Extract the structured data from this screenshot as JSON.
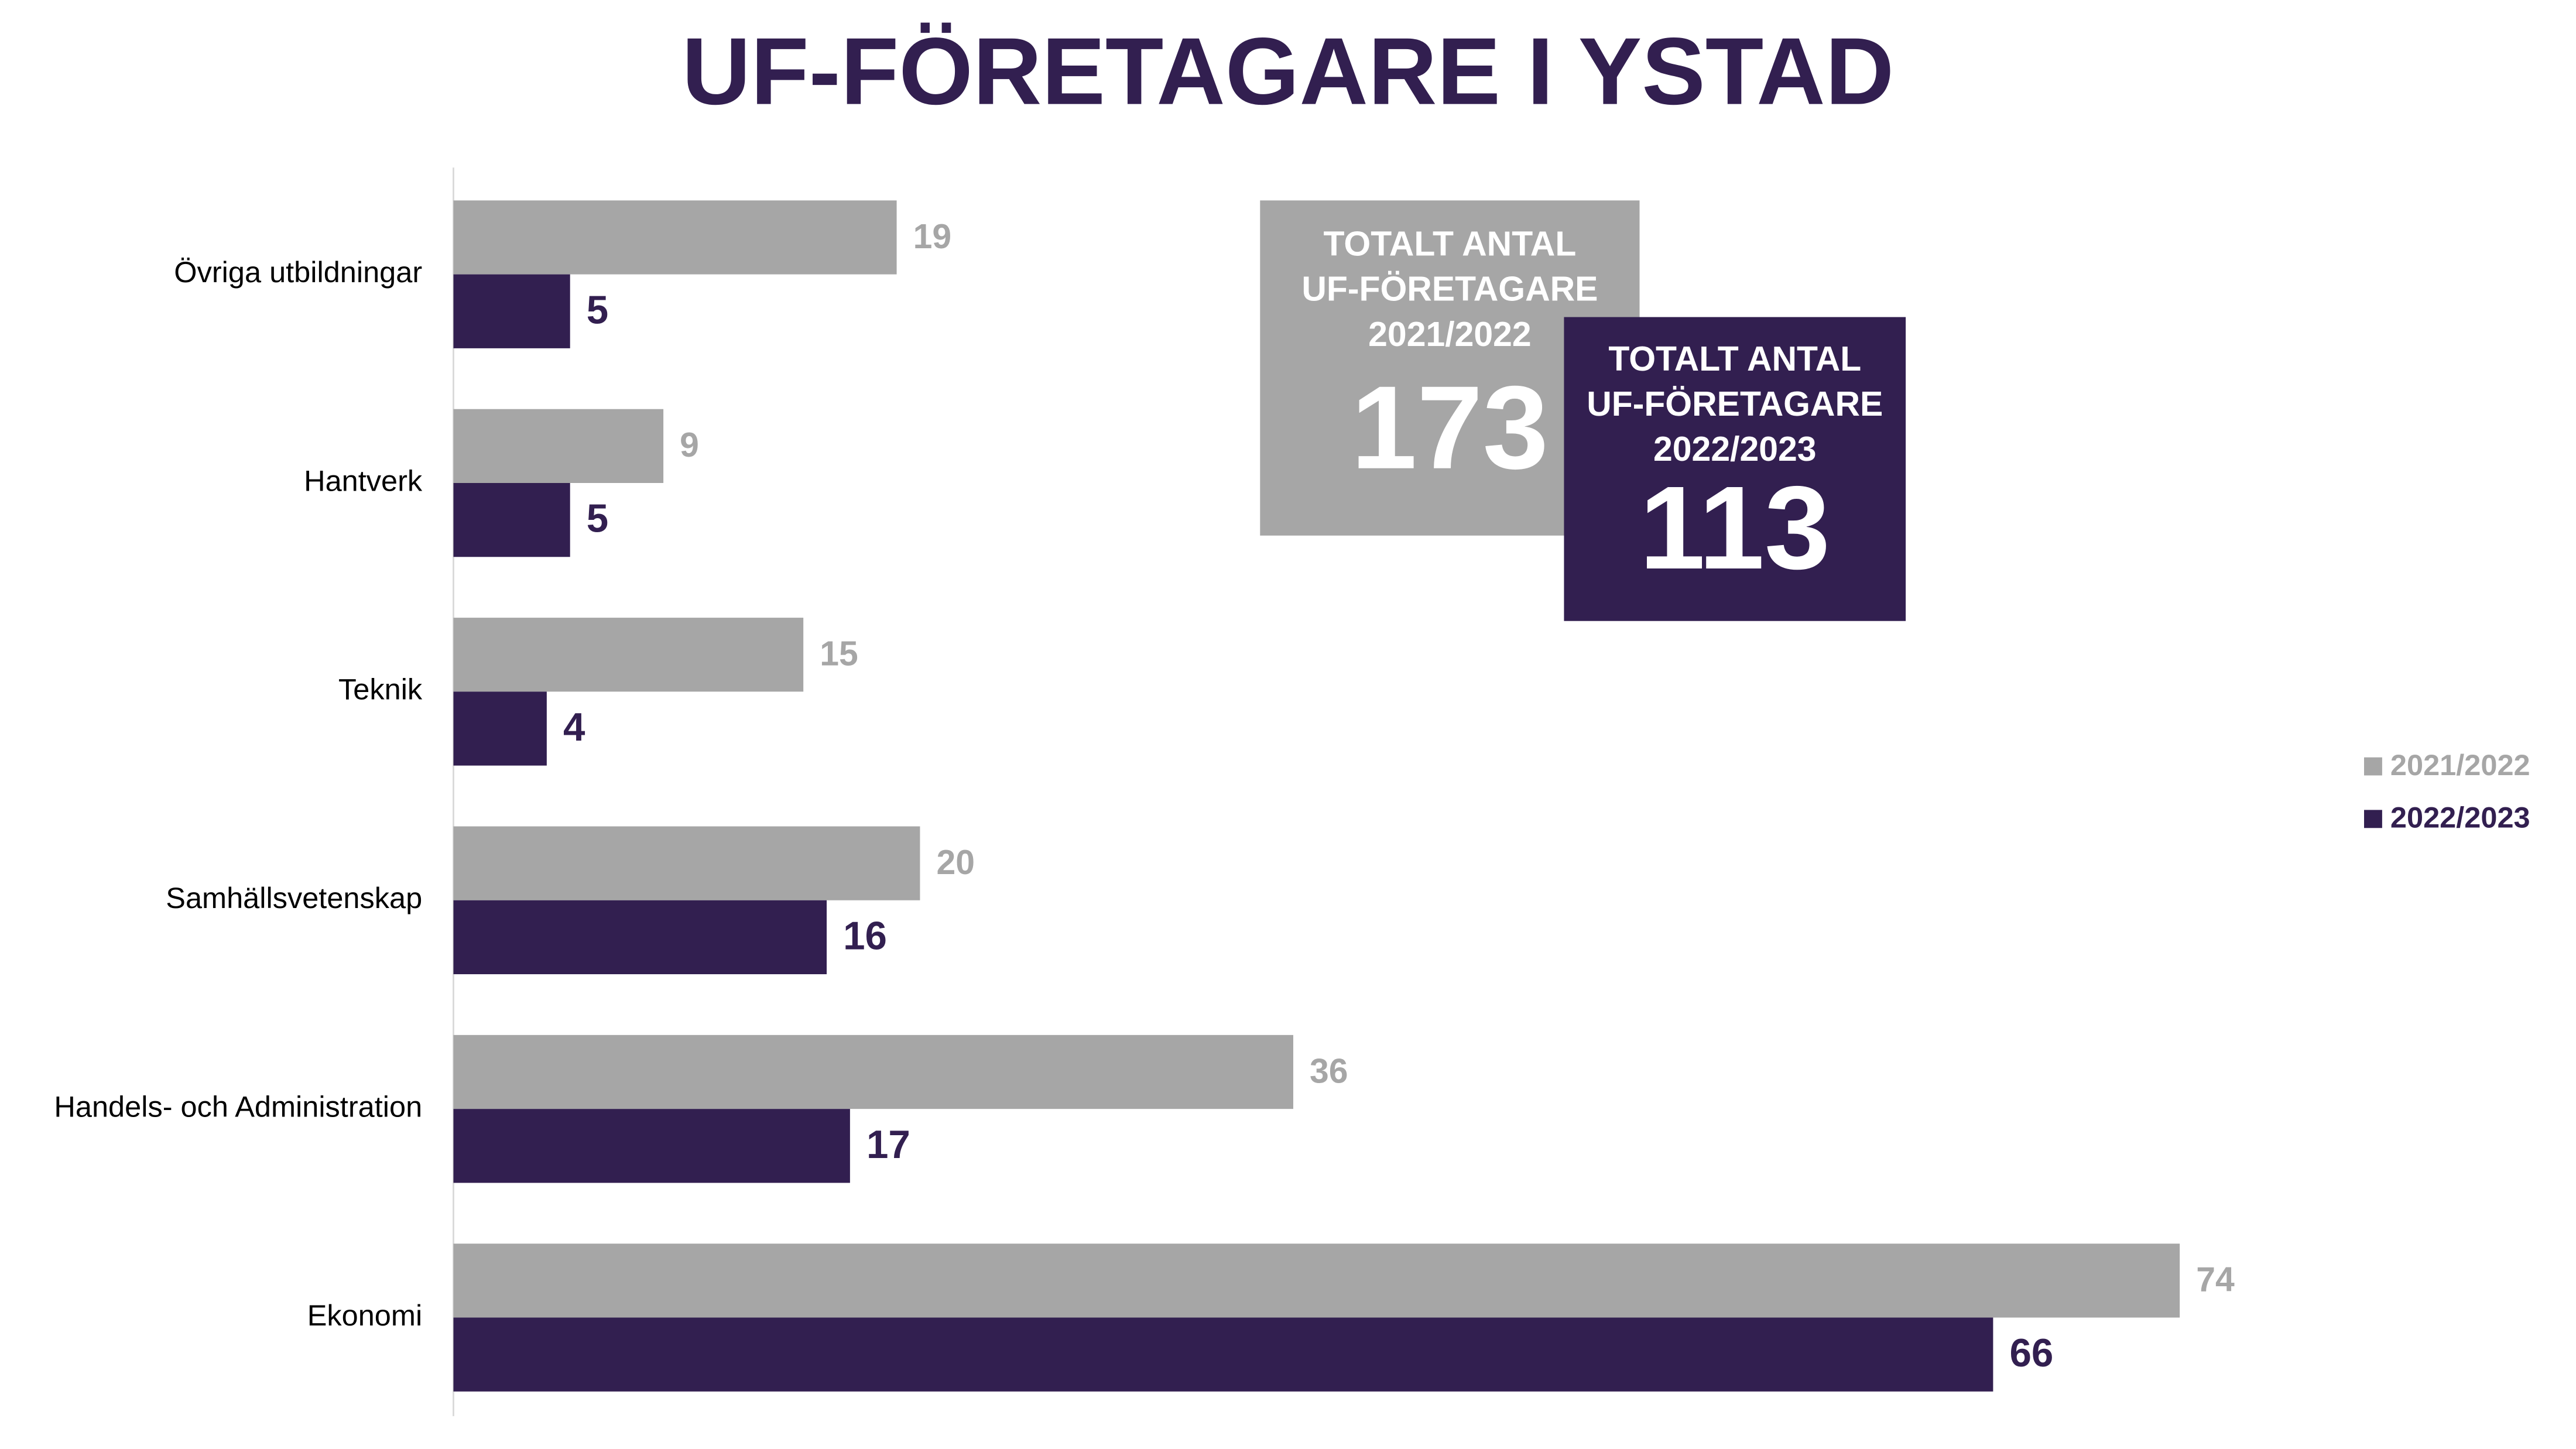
{
  "chart_data": {
    "type": "bar",
    "orientation": "horizontal",
    "title": "UF-FÖRETAGARE I YSTAD",
    "categories": [
      "Övriga utbildningar",
      "Hantverk",
      "Teknik",
      "Samhällsvetenskap",
      "Handels- och Administration",
      "Ekonomi"
    ],
    "series": [
      {
        "name": "2021/2022",
        "color": "#a6a6a6",
        "values": [
          19,
          9,
          15,
          20,
          36,
          74
        ]
      },
      {
        "name": "2022/2023",
        "color": "#321f50",
        "values": [
          5,
          5,
          4,
          16,
          17,
          66
        ]
      }
    ],
    "legend": "right",
    "annotations": [
      {
        "lines": [
          "TOTALT ANTAL",
          "UF-FÖRETAGARE",
          "2021/2022"
        ],
        "value": 173,
        "color": "#a6a6a6"
      },
      {
        "lines": [
          "TOTALT ANTAL",
          "UF-FÖRETAGARE",
          "2022/2023"
        ],
        "value": 113,
        "color": "#321f50"
      }
    ]
  }
}
